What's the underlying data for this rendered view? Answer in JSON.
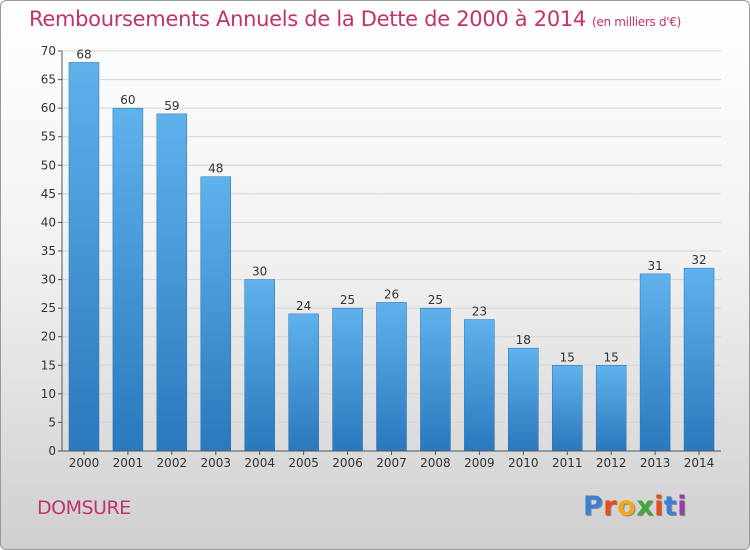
{
  "title": "Remboursements Annuels de la Dette de 2000 à 2014",
  "unit": "(en milliers d'€)",
  "town": "DOMSURE",
  "logo": {
    "text": "Proxiti",
    "letter_colors": [
      "#3b7fd4",
      "#e84a1f",
      "#f2a81d",
      "#43a83b",
      "#e84a1f",
      "#3b7fd4",
      "#9b3aa8"
    ]
  },
  "colors": {
    "title": "#c2336d",
    "bar_top": "#5fb2ec",
    "bar_bottom": "#2a78bd"
  },
  "chart_data": {
    "type": "bar",
    "categories": [
      "2000",
      "2001",
      "2002",
      "2003",
      "2004",
      "2005",
      "2006",
      "2007",
      "2008",
      "2009",
      "2010",
      "2011",
      "2012",
      "2013",
      "2014"
    ],
    "values": [
      68,
      60,
      59,
      48,
      30,
      24,
      25,
      26,
      25,
      23,
      18,
      15,
      15,
      31,
      32
    ],
    "ylim": [
      0,
      70
    ],
    "yticks": [
      0,
      5,
      10,
      15,
      20,
      25,
      30,
      35,
      40,
      45,
      50,
      55,
      60,
      65,
      70
    ],
    "grid": true,
    "data_labels": true
  }
}
